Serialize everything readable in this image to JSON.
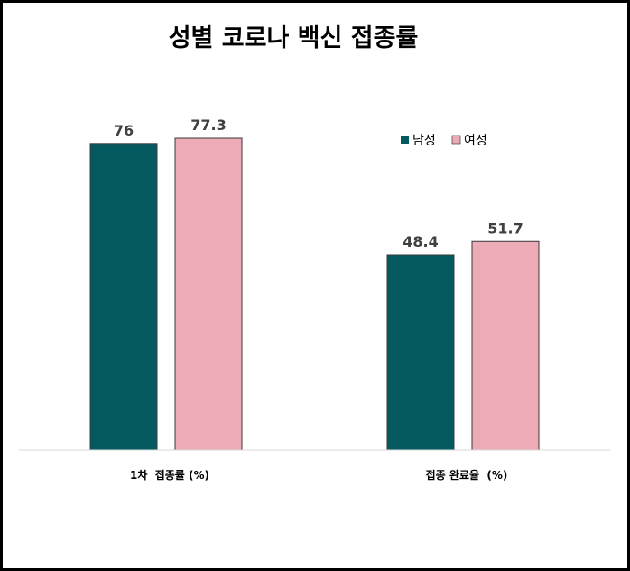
{
  "chart_data": {
    "type": "bar",
    "title": "성별 코로나 백신 접종률",
    "categories": [
      "1차  접종률 (%)",
      "접종 완료율  (%)"
    ],
    "series": [
      {
        "name": "남성",
        "values": [
          76,
          48.4
        ],
        "value_labels": [
          "76",
          "48.4"
        ],
        "color": "#055a60"
      },
      {
        "name": "여성",
        "values": [
          77.3,
          51.7
        ],
        "value_labels": [
          "77.3",
          "51.7"
        ],
        "color": "#edabb6"
      }
    ],
    "ylim": [
      0,
      77.3
    ],
    "grid": false,
    "legend_position": "top-right"
  }
}
